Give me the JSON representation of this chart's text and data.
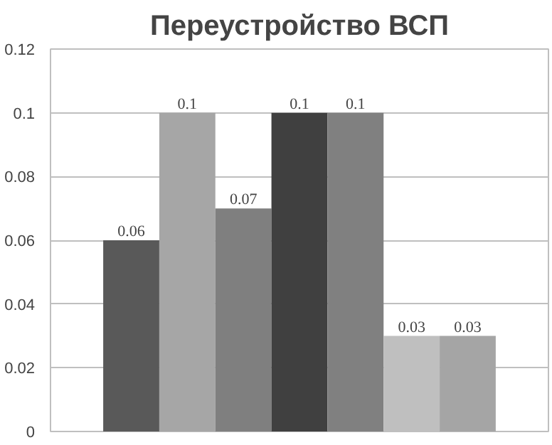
{
  "chart_data": {
    "type": "bar",
    "title": "Переустройство ВСП",
    "categories": [
      null,
      null,
      null,
      null,
      null,
      null,
      null
    ],
    "values": [
      0.06,
      0.1,
      0.07,
      0.1,
      0.1,
      0.03,
      0.03
    ],
    "colors": [
      "#595959",
      "#a6a6a6",
      "#7f7f7f",
      "#404040",
      "#808080",
      "#bfbfbf",
      "#a5a5a5"
    ],
    "ylim": [
      0,
      0.12
    ],
    "yticks": [
      0,
      0.02,
      0.04,
      0.06,
      0.08,
      0.1,
      0.12
    ],
    "grid": "y",
    "data_labels": true
  }
}
